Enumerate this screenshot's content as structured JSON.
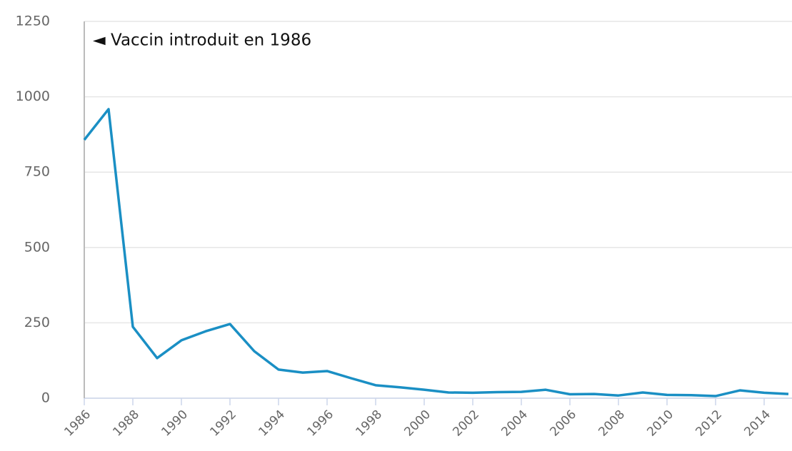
{
  "chart_data": {
    "type": "line",
    "annotation": "◄ Vaccin introduit en 1986",
    "x": [
      1986,
      1987,
      1988,
      1989,
      1990,
      1991,
      1992,
      1993,
      1994,
      1995,
      1996,
      1997,
      1998,
      1999,
      2000,
      2001,
      2002,
      2003,
      2004,
      2005,
      2006,
      2007,
      2008,
      2009,
      2010,
      2011,
      2012,
      2013,
      2014,
      2015
    ],
    "series": [
      {
        "color": "#1a8fc4",
        "values": [
          857,
          959,
          237,
          133,
          192,
          222,
          246,
          156,
          95,
          85,
          90,
          66,
          43,
          36,
          28,
          19,
          18,
          20,
          21,
          28,
          13,
          14,
          9,
          19,
          11,
          10,
          7,
          26,
          18,
          14
        ]
      }
    ],
    "xlim": [
      1986,
      2015
    ],
    "xticks": [
      1986,
      1988,
      1990,
      1992,
      1994,
      1996,
      1998,
      2000,
      2002,
      2004,
      2006,
      2008,
      2010,
      2012,
      2014
    ],
    "ylim": [
      0,
      1250
    ],
    "yticks": [
      0,
      250,
      500,
      750,
      1000,
      1250
    ],
    "grid": true
  }
}
